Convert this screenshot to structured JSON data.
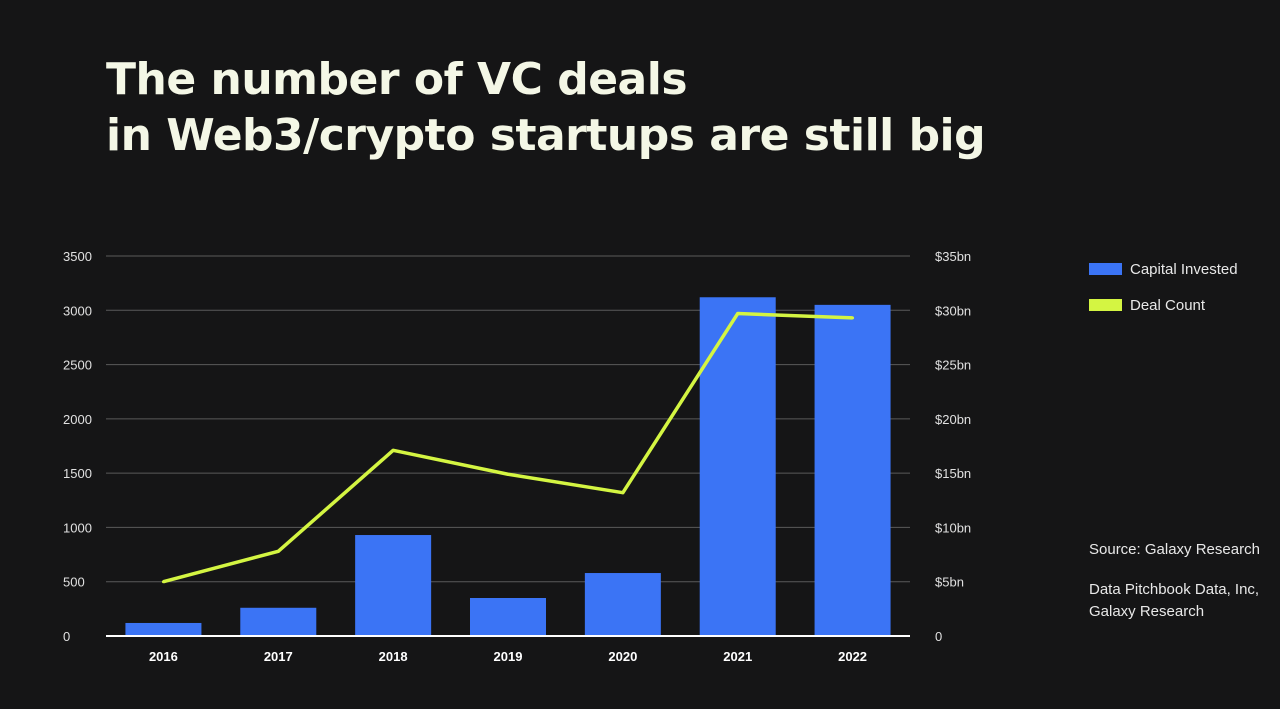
{
  "header": {
    "title_line1": "The number of VC deals",
    "title_line2": "in Web3/crypto startups are still big"
  },
  "colors": {
    "background": "#151516",
    "bars": "#3b74f5",
    "line": "#d4f542",
    "grid": "#5a5a5a",
    "axis": "#ffffff"
  },
  "legend": {
    "items": [
      {
        "label": "Capital Invested",
        "color": "#3b74f5"
      },
      {
        "label": "Deal Count",
        "color": "#d4f542"
      }
    ]
  },
  "notes": {
    "source": "Source: Galaxy Research",
    "data": "Data Pitchbook Data, Inc, Galaxy Research"
  },
  "chart_data": {
    "type": "bar",
    "categories": [
      "2016",
      "2017",
      "2018",
      "2019",
      "2020",
      "2021",
      "2022"
    ],
    "series": [
      {
        "name": "Capital Invested",
        "type": "bar",
        "axis": "right",
        "values": [
          1.2,
          2.6,
          9.3,
          3.5,
          5.8,
          31.2,
          30.5
        ]
      },
      {
        "name": "Deal Count",
        "type": "line",
        "axis": "left",
        "values": [
          500,
          780,
          1710,
          1490,
          1320,
          2970,
          2930
        ]
      }
    ],
    "y_left": {
      "ticks": [
        "0",
        "500",
        "1000",
        "1500",
        "2000",
        "2500",
        "3000",
        "3500"
      ],
      "ylim": [
        0,
        3500
      ]
    },
    "y_right": {
      "ticks": [
        "0",
        "$5bn",
        "$10bn",
        "$15bn",
        "$20bn",
        "$25bn",
        "$30bn",
        "$35bn"
      ],
      "ylim": [
        0,
        35
      ]
    },
    "grid": true,
    "legend_position": "right"
  }
}
